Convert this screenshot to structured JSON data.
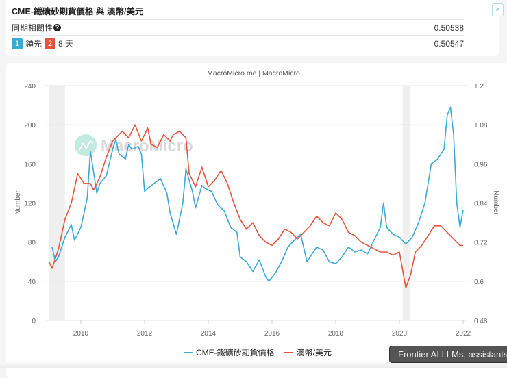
{
  "header": {
    "title": "CME-鐵礦砂期貨價格 與 澳幣/美元",
    "close_label": "×",
    "rows": [
      {
        "label": "同期相關性",
        "help_icon": "?",
        "value": "0.50538"
      },
      {
        "badge1": "1",
        "lead_label": "領先",
        "badge2": "2",
        "days_label": "8 天",
        "value": "0.50547"
      }
    ]
  },
  "chart": {
    "source": "MacroMicro.me | MacroMicro",
    "watermark": "MacroMicro",
    "colors": {
      "series1": "#3ba9d6",
      "series2": "#e5533d",
      "shade": "#efefef",
      "grid": "#e6e6e6"
    }
  },
  "legend": {
    "series1": "CME-鐵礦砂期貨價格",
    "series2": "澳幣/美元"
  },
  "toast": {
    "text": "Frontier AI LLMs, assistants"
  },
  "chart_data": {
    "type": "line",
    "title": "CME-鐵礦砂期貨價格 與 澳幣/美元",
    "subtitle": "MacroMicro.me | MacroMicro",
    "xlabel": "",
    "ylabel": "Number",
    "ylabel_right": "Number",
    "x_ticks": [
      "2010",
      "2012",
      "2014",
      "2016",
      "2018",
      "2020",
      "2022"
    ],
    "y_left_ticks": [
      0,
      40,
      80,
      120,
      160,
      200,
      240
    ],
    "y_right_ticks": [
      0.48,
      0.6,
      0.72,
      0.84,
      0.96,
      1.08,
      1.2
    ],
    "ylim": [
      0,
      240
    ],
    "ylim_right": [
      0.48,
      1.2
    ],
    "grid": true,
    "legend_position": "bottom",
    "shaded_periods": [
      [
        "2009.0",
        "2009.5"
      ],
      [
        "2020.1",
        "2020.35"
      ]
    ],
    "series": [
      {
        "name": "CME-鐵礦砂期貨價格",
        "axis": "left",
        "color": "#3ba9d6",
        "x": [
          2009.1,
          2009.2,
          2009.3,
          2009.5,
          2009.7,
          2009.8,
          2010.0,
          2010.2,
          2010.3,
          2010.5,
          2010.6,
          2010.8,
          2011.0,
          2011.1,
          2011.2,
          2011.4,
          2011.5,
          2011.6,
          2011.8,
          2011.9,
          2012.0,
          2012.1,
          2012.3,
          2012.5,
          2012.7,
          2012.8,
          2013.0,
          2013.2,
          2013.3,
          2013.5,
          2013.6,
          2013.8,
          2013.9,
          2014.1,
          2014.3,
          2014.5,
          2014.7,
          2014.9,
          2015.0,
          2015.2,
          2015.4,
          2015.6,
          2015.8,
          2015.9,
          2016.1,
          2016.3,
          2016.5,
          2016.7,
          2016.9,
          2017.1,
          2017.2,
          2017.4,
          2017.6,
          2017.8,
          2018.0,
          2018.2,
          2018.4,
          2018.6,
          2018.8,
          2019.0,
          2019.2,
          2019.4,
          2019.5,
          2019.6,
          2019.8,
          2020.0,
          2020.2,
          2020.4,
          2020.6,
          2020.8,
          2021.0,
          2021.2,
          2021.4,
          2021.5,
          2021.6,
          2021.7,
          2021.8,
          2021.9,
          2022.0
        ],
        "values": [
          75,
          60,
          65,
          85,
          98,
          82,
          95,
          125,
          173,
          130,
          140,
          148,
          175,
          185,
          170,
          165,
          180,
          175,
          178,
          170,
          132,
          135,
          140,
          145,
          130,
          110,
          88,
          120,
          155,
          132,
          115,
          138,
          135,
          132,
          118,
          112,
          95,
          90,
          65,
          60,
          50,
          62,
          45,
          40,
          48,
          60,
          75,
          82,
          88,
          60,
          65,
          75,
          72,
          60,
          58,
          65,
          75,
          70,
          72,
          68,
          82,
          95,
          120,
          95,
          88,
          85,
          78,
          85,
          100,
          120,
          160,
          165,
          175,
          210,
          218,
          190,
          120,
          95,
          113
        ]
      },
      {
        "name": "澳幣/美元",
        "axis": "right",
        "color": "#e5533d",
        "x": [
          2009.0,
          2009.1,
          2009.3,
          2009.5,
          2009.7,
          2009.9,
          2010.1,
          2010.3,
          2010.4,
          2010.6,
          2010.8,
          2011.0,
          2011.2,
          2011.3,
          2011.5,
          2011.7,
          2011.9,
          2012.1,
          2012.2,
          2012.4,
          2012.6,
          2012.8,
          2012.9,
          2013.1,
          2013.3,
          2013.4,
          2013.6,
          2013.8,
          2014.0,
          2014.2,
          2014.4,
          2014.6,
          2014.8,
          2015.0,
          2015.2,
          2015.4,
          2015.6,
          2015.8,
          2016.0,
          2016.2,
          2016.4,
          2016.6,
          2016.8,
          2017.0,
          2017.2,
          2017.4,
          2017.6,
          2017.8,
          2018.0,
          2018.2,
          2018.4,
          2018.6,
          2018.8,
          2019.0,
          2019.2,
          2019.4,
          2019.6,
          2019.8,
          2020.0,
          2020.2,
          2020.35,
          2020.5,
          2020.7,
          2020.9,
          2021.1,
          2021.3,
          2021.5,
          2021.7,
          2021.9,
          2022.0
        ],
        "values": [
          0.66,
          0.64,
          0.7,
          0.79,
          0.84,
          0.93,
          0.9,
          0.9,
          0.88,
          0.92,
          0.98,
          1.03,
          1.05,
          1.06,
          1.04,
          1.08,
          1.03,
          1.07,
          1.02,
          1.01,
          1.05,
          1.03,
          1.05,
          1.06,
          1.04,
          0.93,
          0.89,
          0.95,
          0.89,
          0.91,
          0.94,
          0.9,
          0.84,
          0.79,
          0.76,
          0.78,
          0.74,
          0.72,
          0.71,
          0.73,
          0.76,
          0.75,
          0.73,
          0.75,
          0.77,
          0.8,
          0.78,
          0.77,
          0.81,
          0.79,
          0.75,
          0.74,
          0.72,
          0.71,
          0.7,
          0.69,
          0.69,
          0.68,
          0.69,
          0.58,
          0.62,
          0.69,
          0.71,
          0.74,
          0.77,
          0.77,
          0.75,
          0.73,
          0.71,
          0.71
        ]
      }
    ]
  }
}
